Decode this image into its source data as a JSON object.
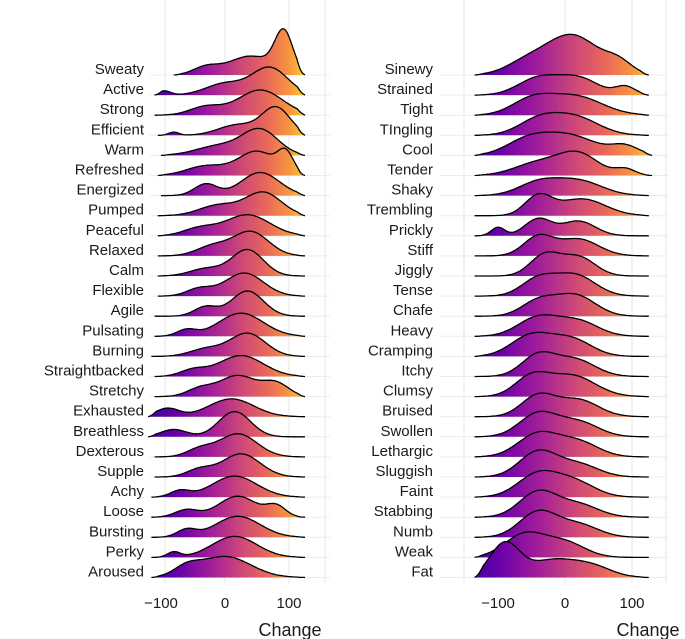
{
  "chart_data": [
    {
      "type": "ridgeline",
      "panel": "left",
      "xlabel": "Change",
      "xlim": [
        -150,
        130
      ],
      "x_ticks": [
        -100,
        0,
        100
      ],
      "x_tick_labels": [
        "−100",
        "0",
        "100"
      ],
      "grid": true,
      "fill": "gradient by x (plasma: purple → yellow)",
      "series": [
        {
          "name": "Sweaty",
          "range": [
            -80,
            125
          ],
          "peaks": [
            [
              -30,
              0.35,
              20
            ],
            [
              40,
              0.9,
              35
            ],
            [
              92,
              1.9,
              14
            ]
          ]
        },
        {
          "name": "Active",
          "range": [
            -110,
            125
          ],
          "peaks": [
            [
              -95,
              0.2,
              10
            ],
            [
              0,
              0.55,
              30
            ],
            [
              70,
              1.3,
              28
            ]
          ]
        },
        {
          "name": "Strong",
          "range": [
            -110,
            125
          ],
          "peaks": [
            [
              -30,
              0.4,
              25
            ],
            [
              55,
              1.2,
              35
            ]
          ]
        },
        {
          "name": "Efficient",
          "range": [
            -105,
            125
          ],
          "peaks": [
            [
              -80,
              0.15,
              8
            ],
            [
              20,
              0.5,
              30
            ],
            [
              80,
              1.3,
              22
            ]
          ]
        },
        {
          "name": "Warm",
          "range": [
            -100,
            125
          ],
          "peaks": [
            [
              -10,
              0.45,
              35
            ],
            [
              55,
              1.2,
              28
            ]
          ]
        },
        {
          "name": "Refreshed",
          "range": [
            -105,
            125
          ],
          "peaks": [
            [
              -30,
              0.45,
              30
            ],
            [
              50,
              1.15,
              30
            ],
            [
              95,
              0.9,
              12
            ]
          ]
        },
        {
          "name": "Energized",
          "range": [
            -100,
            125
          ],
          "peaks": [
            [
              -30,
              0.55,
              18
            ],
            [
              55,
              1.1,
              30
            ]
          ]
        },
        {
          "name": "Pumped",
          "range": [
            -105,
            125
          ],
          "peaks": [
            [
              -10,
              0.5,
              30
            ],
            [
              60,
              1.1,
              28
            ]
          ]
        },
        {
          "name": "Peaceful",
          "range": [
            -105,
            125
          ],
          "peaks": [
            [
              -40,
              0.35,
              25
            ],
            [
              35,
              1.0,
              35
            ]
          ]
        },
        {
          "name": "Relaxed",
          "range": [
            -105,
            125
          ],
          "peaks": [
            [
              -20,
              0.45,
              25
            ],
            [
              40,
              1.15,
              28
            ]
          ]
        },
        {
          "name": "Calm",
          "range": [
            -105,
            125
          ],
          "peaks": [
            [
              -30,
              0.35,
              25
            ],
            [
              35,
              1.25,
              25
            ]
          ]
        },
        {
          "name": "Flexible",
          "range": [
            -105,
            125
          ],
          "peaks": [
            [
              -40,
              0.35,
              20
            ],
            [
              30,
              1.1,
              30
            ]
          ]
        },
        {
          "name": "Agile",
          "range": [
            -110,
            125
          ],
          "peaks": [
            [
              -30,
              0.45,
              18
            ],
            [
              35,
              1.2,
              25
            ]
          ]
        },
        {
          "name": "Pulsating",
          "range": [
            -110,
            125
          ],
          "peaks": [
            [
              -60,
              0.3,
              15
            ],
            [
              25,
              1.1,
              35
            ]
          ]
        },
        {
          "name": "Burning",
          "range": [
            -115,
            125
          ],
          "peaks": [
            [
              -30,
              0.35,
              25
            ],
            [
              35,
              1.1,
              28
            ]
          ]
        },
        {
          "name": "Straightbacked",
          "range": [
            -110,
            125
          ],
          "peaks": [
            [
              -50,
              0.3,
              20
            ],
            [
              25,
              1.0,
              35
            ]
          ]
        },
        {
          "name": "Stretchy",
          "range": [
            -110,
            125
          ],
          "peaks": [
            [
              -40,
              0.35,
              20
            ],
            [
              20,
              1.0,
              30
            ],
            [
              80,
              0.6,
              20
            ]
          ]
        },
        {
          "name": "Exhausted",
          "range": [
            -120,
            125
          ],
          "peaks": [
            [
              -90,
              0.4,
              18
            ],
            [
              10,
              0.85,
              35
            ]
          ]
        },
        {
          "name": "Breathless",
          "range": [
            -120,
            125
          ],
          "peaks": [
            [
              -80,
              0.35,
              20
            ],
            [
              15,
              1.2,
              25
            ]
          ]
        },
        {
          "name": "Dexterous",
          "range": [
            -110,
            125
          ],
          "peaks": [
            [
              -40,
              0.35,
              20
            ],
            [
              20,
              1.1,
              30
            ]
          ]
        },
        {
          "name": "Supple",
          "range": [
            -110,
            125
          ],
          "peaks": [
            [
              -40,
              0.35,
              20
            ],
            [
              25,
              1.1,
              30
            ]
          ]
        },
        {
          "name": "Achy",
          "range": [
            -115,
            125
          ],
          "peaks": [
            [
              -70,
              0.3,
              15
            ],
            [
              15,
              1.0,
              35
            ]
          ]
        },
        {
          "name": "Loose",
          "range": [
            -115,
            125
          ],
          "peaks": [
            [
              -60,
              0.35,
              18
            ],
            [
              20,
              1.0,
              30
            ],
            [
              80,
              0.5,
              15
            ]
          ]
        },
        {
          "name": "Bursting",
          "range": [
            -115,
            125
          ],
          "peaks": [
            [
              -60,
              0.35,
              15
            ],
            [
              20,
              1.0,
              35
            ]
          ]
        },
        {
          "name": "Perky",
          "range": [
            -115,
            125
          ],
          "peaks": [
            [
              -80,
              0.25,
              10
            ],
            [
              15,
              1.0,
              35
            ]
          ]
        },
        {
          "name": "Aroused",
          "range": [
            -115,
            125
          ],
          "peaks": [
            [
              -60,
              0.4,
              20
            ],
            [
              0,
              1.0,
              40
            ]
          ]
        }
      ]
    },
    {
      "type": "ridgeline",
      "panel": "right",
      "xlabel": "Change",
      "xlim": [
        -150,
        130
      ],
      "x_ticks": [
        -100,
        0,
        100
      ],
      "x_tick_labels": [
        "−100",
        "0",
        "100"
      ],
      "grid": true,
      "fill": "gradient by x (plasma: purple → yellow)",
      "series": [
        {
          "name": "Sinewy",
          "range": [
            -135,
            125
          ],
          "peaks": [
            [
              -60,
              0.5,
              30
            ],
            [
              10,
              1.9,
              40
            ],
            [
              80,
              0.5,
              20
            ]
          ]
        },
        {
          "name": "Strained",
          "range": [
            -135,
            125
          ],
          "peaks": [
            [
              -40,
              0.8,
              30
            ],
            [
              20,
              0.8,
              30
            ],
            [
              90,
              0.4,
              15
            ]
          ]
        },
        {
          "name": "Tight",
          "range": [
            -135,
            125
          ],
          "peaks": [
            [
              -50,
              0.7,
              30
            ],
            [
              15,
              0.9,
              40
            ]
          ]
        },
        {
          "name": "TIngling",
          "range": [
            -135,
            125
          ],
          "peaks": [
            [
              -40,
              0.7,
              30
            ],
            [
              15,
              0.85,
              35
            ]
          ]
        },
        {
          "name": "Cool",
          "range": [
            -135,
            130
          ],
          "peaks": [
            [
              -60,
              0.5,
              30
            ],
            [
              0,
              1.0,
              45
            ],
            [
              90,
              0.4,
              20
            ]
          ]
        },
        {
          "name": "Tender",
          "range": [
            -135,
            130
          ],
          "peaks": [
            [
              -40,
              0.6,
              35
            ],
            [
              20,
              1.0,
              30
            ],
            [
              90,
              0.3,
              15
            ]
          ]
        },
        {
          "name": "Shaky",
          "range": [
            -135,
            125
          ],
          "peaks": [
            [
              -40,
              0.6,
              30
            ],
            [
              20,
              0.7,
              35
            ]
          ]
        },
        {
          "name": "Trembling",
          "range": [
            -135,
            125
          ],
          "peaks": [
            [
              -40,
              0.9,
              20
            ],
            [
              25,
              0.8,
              35
            ]
          ]
        },
        {
          "name": "Prickly",
          "range": [
            -135,
            125
          ],
          "peaks": [
            [
              -100,
              0.4,
              10
            ],
            [
              -40,
              0.8,
              20
            ],
            [
              20,
              0.7,
              25
            ]
          ]
        },
        {
          "name": "Stiff",
          "range": [
            -135,
            125
          ],
          "peaks": [
            [
              -40,
              0.9,
              22
            ],
            [
              20,
              0.8,
              30
            ]
          ]
        },
        {
          "name": "Jiggly",
          "range": [
            -135,
            125
          ],
          "peaks": [
            [
              -30,
              1.0,
              22
            ],
            [
              20,
              0.9,
              25
            ]
          ]
        },
        {
          "name": "Tense",
          "range": [
            -135,
            125
          ],
          "peaks": [
            [
              -40,
              0.8,
              25
            ],
            [
              15,
              1.0,
              30
            ]
          ]
        },
        {
          "name": "Chafe",
          "range": [
            -135,
            125
          ],
          "peaks": [
            [
              -40,
              0.7,
              25
            ],
            [
              15,
              1.0,
              30
            ]
          ]
        },
        {
          "name": "Heavy",
          "range": [
            -135,
            125
          ],
          "peaks": [
            [
              -40,
              0.9,
              30
            ],
            [
              20,
              0.7,
              30
            ]
          ]
        },
        {
          "name": "Cramping",
          "range": [
            -135,
            125
          ],
          "peaks": [
            [
              -50,
              1.0,
              30
            ],
            [
              10,
              0.8,
              30
            ]
          ]
        },
        {
          "name": "Itchy",
          "range": [
            -135,
            125
          ],
          "peaks": [
            [
              -40,
              1.0,
              25
            ],
            [
              15,
              0.8,
              30
            ]
          ]
        },
        {
          "name": "Clumsy",
          "range": [
            -135,
            125
          ],
          "peaks": [
            [
              -50,
              0.9,
              25
            ],
            [
              10,
              1.0,
              35
            ]
          ]
        },
        {
          "name": "Bruised",
          "range": [
            -135,
            125
          ],
          "peaks": [
            [
              -40,
              1.0,
              25
            ],
            [
              20,
              0.8,
              30
            ]
          ]
        },
        {
          "name": "Swollen",
          "range": [
            -135,
            125
          ],
          "peaks": [
            [
              -40,
              1.1,
              28
            ],
            [
              20,
              0.7,
              30
            ]
          ]
        },
        {
          "name": "Lethargic",
          "range": [
            -135,
            125
          ],
          "peaks": [
            [
              -40,
              1.1,
              30
            ],
            [
              20,
              0.7,
              30
            ]
          ]
        },
        {
          "name": "Sluggish",
          "range": [
            -135,
            125
          ],
          "peaks": [
            [
              -40,
              1.2,
              28
            ],
            [
              20,
              0.6,
              30
            ]
          ]
        },
        {
          "name": "Faint",
          "range": [
            -135,
            125
          ],
          "peaks": [
            [
              -40,
              1.1,
              30
            ],
            [
              15,
              0.7,
              30
            ]
          ]
        },
        {
          "name": "Stabbing",
          "range": [
            -135,
            125
          ],
          "peaks": [
            [
              -40,
              1.2,
              28
            ],
            [
              20,
              0.6,
              30
            ]
          ]
        },
        {
          "name": "Numb",
          "range": [
            -135,
            125
          ],
          "peaks": [
            [
              -40,
              1.2,
              28
            ],
            [
              20,
              0.6,
              30
            ]
          ]
        },
        {
          "name": "Weak",
          "range": [
            -135,
            125
          ],
          "peaks": [
            [
              -60,
              1.1,
              30
            ],
            [
              0,
              0.7,
              30
            ]
          ]
        },
        {
          "name": "Fat",
          "range": [
            -135,
            125
          ],
          "peaks": [
            [
              -90,
              1.6,
              22
            ],
            [
              -20,
              0.8,
              35
            ],
            [
              40,
              0.5,
              30
            ]
          ]
        }
      ]
    }
  ]
}
